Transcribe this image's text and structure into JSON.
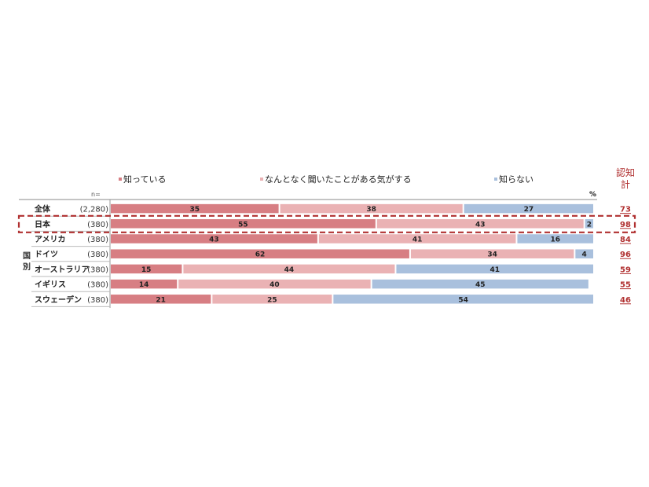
{
  "chart_data": {
    "type": "bar",
    "stacked": true,
    "horizontal": true,
    "colors": {
      "know": "#d77e83",
      "heard": "#eab2b4",
      "unknown": "#a9c0dd",
      "accent": "#b03030"
    },
    "series": [
      {
        "name": "知っている",
        "color": "#d77e83"
      },
      {
        "name": "なんとなく聞いたことがある気がする",
        "color": "#eab2b4"
      },
      {
        "name": "知らない",
        "color": "#a9c0dd"
      }
    ],
    "n_label": "n=",
    "unit_label": "%",
    "total_header": "認知\n計",
    "group_label": "国\n別",
    "rows": [
      {
        "label": "全体",
        "n": "(2,280)",
        "values": [
          35,
          38,
          27
        ],
        "total": 73
      },
      {
        "label": "日本",
        "n": "(380)",
        "values": [
          55,
          43,
          2
        ],
        "total": 98,
        "highlight": true
      },
      {
        "label": "アメリカ",
        "n": "(380)",
        "values": [
          43,
          41,
          16
        ],
        "total": 84
      },
      {
        "label": "ドイツ",
        "n": "(380)",
        "values": [
          62,
          34,
          4
        ],
        "total": 96
      },
      {
        "label": "オーストラリア",
        "n": "(380)",
        "values": [
          15,
          44,
          41
        ],
        "total": 59
      },
      {
        "label": "イギリス",
        "n": "(380)",
        "values": [
          14,
          40,
          45
        ],
        "total": 55
      },
      {
        "label": "スウェーデン",
        "n": "(380)",
        "values": [
          21,
          25,
          54
        ],
        "total": 46
      }
    ]
  }
}
